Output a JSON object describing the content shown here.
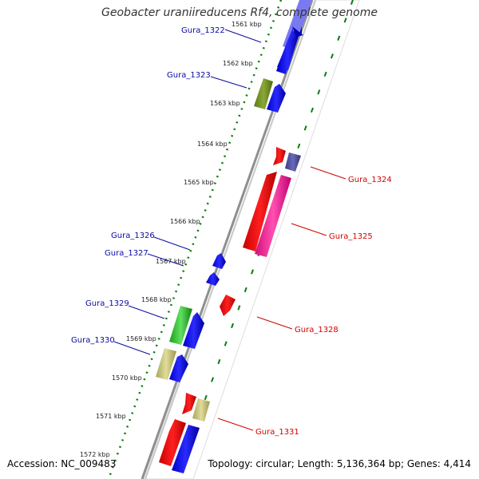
{
  "title": "Geobacter uraniireducens Rf4, complete genome",
  "footer": {
    "accession": "Accession: NC_009483",
    "stats": "Topology: circular; Length: 5,136,364 bp; Genes: 4,414"
  },
  "colors": {
    "forward_label": "#0a0aa0",
    "reverse_label": "#d40000",
    "tick": "#0a7a0a",
    "backbone": "#8f8f8f"
  },
  "kbp_labels": [
    "1561 kbp",
    "1562 kbp",
    "1563 kbp",
    "1564 kbp",
    "1565 kbp",
    "1566 kbp",
    "1567 kbp",
    "1568 kbp",
    "1569 kbp",
    "1570 kbp",
    "1571 kbp",
    "1572 kbp"
  ],
  "genes": [
    {
      "name": "Gura_1322",
      "strand": "forward"
    },
    {
      "name": "Gura_1323",
      "strand": "forward"
    },
    {
      "name": "Gura_1324",
      "strand": "reverse"
    },
    {
      "name": "Gura_1325",
      "strand": "reverse"
    },
    {
      "name": "Gura_1326",
      "strand": "forward"
    },
    {
      "name": "Gura_1327",
      "strand": "forward"
    },
    {
      "name": "Gura_1328",
      "strand": "reverse"
    },
    {
      "name": "Gura_1329",
      "strand": "forward"
    },
    {
      "name": "Gura_1330",
      "strand": "forward"
    },
    {
      "name": "Gura_1331",
      "strand": "reverse"
    }
  ]
}
